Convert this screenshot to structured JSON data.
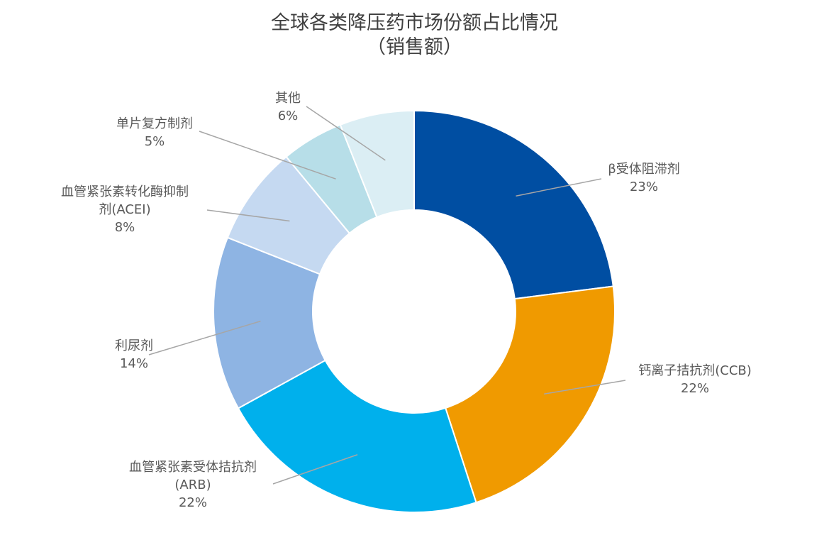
{
  "chart_data": {
    "type": "pie",
    "title": "全球各类降压药市场份额占比情况",
    "subtitle": "（销售额）",
    "unit": "%",
    "categories": [
      "β受体阻滞剂",
      "钙离子拮抗剂(CCB)",
      "血管紧张素受体拮抗剂(ARB)",
      "利尿剂",
      "血管紧张素转化酶抑制剂(ACEI)",
      "单片复方制剂",
      "其他"
    ],
    "values": [
      23,
      22,
      22,
      14,
      8,
      5,
      6
    ],
    "value_labels": [
      "23%",
      "22%",
      "22%",
      "14%",
      "8%",
      "5%",
      "6%"
    ],
    "label_lines": [
      [
        "β受体阻滞剂"
      ],
      [
        "钙离子拮抗剂(CCB)"
      ],
      [
        "血管紧张素受体拮抗剂",
        "(ARB)"
      ],
      [
        "利尿剂"
      ],
      [
        "血管紧张素转化酶抑制",
        "剂(ACEI)"
      ],
      [
        "单片复方制剂"
      ],
      [
        "其他"
      ]
    ],
    "colors": [
      "#004EA2",
      "#F09A00",
      "#00B0EC",
      "#8EB4E3",
      "#C5D9F1",
      "#B7DEE8",
      "#DBEEF4"
    ],
    "donut": true,
    "legend": "none"
  }
}
